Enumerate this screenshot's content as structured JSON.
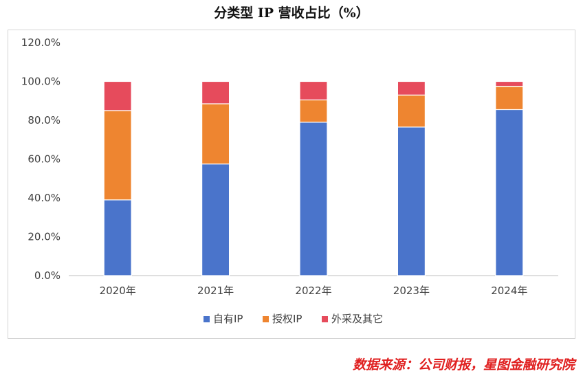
{
  "title": "分类型 IP 营收占比（%）",
  "source": "数据来源：公司财报，星图金融研究院",
  "colors": {
    "self_ip": "#4a74cb",
    "licensed_ip": "#ee8530",
    "other": "#e64b5c",
    "axis": "#bfbfbf",
    "text": "#404040"
  },
  "chart_data": {
    "type": "bar",
    "stacked": true,
    "categories": [
      "2020年",
      "2021年",
      "2022年",
      "2023年",
      "2024年"
    ],
    "series": [
      {
        "name": "自有IP",
        "color": "#4a74cb",
        "values": [
          39.0,
          57.5,
          79.0,
          76.5,
          85.5
        ]
      },
      {
        "name": "授权IP",
        "color": "#ee8530",
        "values": [
          46.0,
          31.0,
          11.5,
          16.5,
          12.0
        ]
      },
      {
        "name": "外采及其它",
        "color": "#e64b5c",
        "values": [
          15.0,
          11.5,
          9.5,
          7.0,
          2.5
        ]
      }
    ],
    "yticks": [
      "0.0%",
      "20.0%",
      "40.0%",
      "60.0%",
      "80.0%",
      "100.0%",
      "120.0%"
    ],
    "ylim": [
      0,
      120
    ],
    "grid": false,
    "legend": "bottom"
  }
}
